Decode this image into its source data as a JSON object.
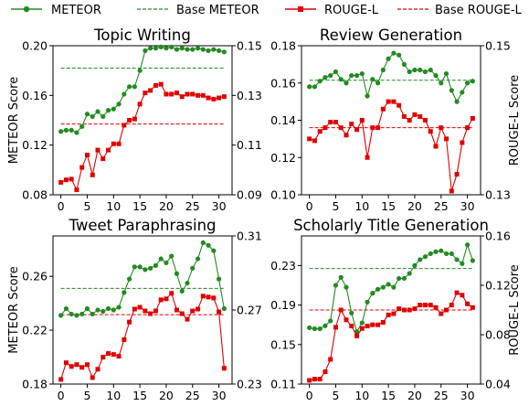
{
  "legend": {
    "meteor": "METEOR",
    "base_meteor": "Base METEOR",
    "rouge": "ROUGE-L",
    "base_rouge": "Base ROUGE-L"
  },
  "colors": {
    "meteor": "#228B22",
    "rouge": "#E00000"
  },
  "chart_data": [
    {
      "type": "line",
      "title": "Topic Writing",
      "ylabel": "METEOR Score",
      "y2label": "",
      "ylim": [
        0.08,
        0.2
      ],
      "yticks": [
        0.08,
        0.12,
        0.16,
        0.2
      ],
      "ytick_labels": [
        "0.08",
        "0.12",
        "0.16",
        "0.20"
      ],
      "y2lim": [
        0.09,
        0.15
      ],
      "y2ticks": [
        0.09,
        0.11,
        0.13,
        0.15
      ],
      "y2tick_labels": [
        "0.09",
        "0.11",
        "0.13",
        "0.15"
      ],
      "xlim": [
        -1.5,
        32.5
      ],
      "xticks": [
        0,
        5,
        10,
        15,
        20,
        25,
        30
      ],
      "xtick_labels": [
        "0",
        "5",
        "10",
        "15",
        "20",
        "25",
        "30"
      ],
      "x": [
        0,
        1,
        2,
        3,
        4,
        5,
        6,
        7,
        8,
        9,
        10,
        11,
        12,
        13,
        14,
        15,
        16,
        17,
        18,
        19,
        20,
        21,
        22,
        23,
        24,
        25,
        26,
        27,
        28,
        29,
        30,
        31
      ],
      "series": [
        {
          "name": "METEOR",
          "axis": "left",
          "values": [
            0.131,
            0.132,
            0.132,
            0.13,
            0.135,
            0.145,
            0.143,
            0.147,
            0.143,
            0.148,
            0.149,
            0.153,
            0.161,
            0.167,
            0.167,
            0.18,
            0.196,
            0.198,
            0.198,
            0.199,
            0.198,
            0.199,
            0.197,
            0.198,
            0.197,
            0.197,
            0.198,
            0.197,
            0.196,
            0.197,
            0.196,
            0.195
          ]
        },
        {
          "name": "ROUGE-L",
          "axis": "right",
          "values": [
            0.095,
            0.096,
            0.0963,
            0.092,
            0.101,
            0.106,
            0.098,
            0.108,
            0.1045,
            0.108,
            0.1105,
            0.1105,
            0.118,
            0.12,
            0.1205,
            0.1265,
            0.131,
            0.132,
            0.134,
            0.1345,
            0.1305,
            0.1305,
            0.131,
            0.1295,
            0.1305,
            0.1305,
            0.13,
            0.13,
            0.129,
            0.1285,
            0.129,
            0.1295
          ]
        }
      ],
      "base_meteor": 0.182,
      "base_rouge": 0.1185
    },
    {
      "type": "line",
      "title": "Review Generation",
      "ylabel": "",
      "y2label": "ROUGE-L Score",
      "ylim": [
        0.1,
        0.18
      ],
      "yticks": [
        0.1,
        0.12,
        0.14,
        0.16,
        0.18
      ],
      "ytick_labels": [
        "0.10",
        "0.12",
        "0.14",
        "0.16",
        "0.18"
      ],
      "y2lim": [
        0.13,
        0.15
      ],
      "y2ticks": [
        0.13,
        0.15
      ],
      "y2tick_labels": [
        "0.13",
        "0.15"
      ],
      "xlim": [
        -1.5,
        32.5
      ],
      "xticks": [
        0,
        5,
        10,
        15,
        20,
        25,
        30
      ],
      "xtick_labels": [
        "0",
        "5",
        "10",
        "15",
        "20",
        "25",
        "30"
      ],
      "x": [
        0,
        1,
        2,
        3,
        4,
        5,
        6,
        7,
        8,
        9,
        10,
        11,
        12,
        13,
        14,
        15,
        16,
        17,
        18,
        19,
        20,
        21,
        22,
        23,
        24,
        25,
        26,
        27,
        28,
        29,
        30,
        31
      ],
      "series": [
        {
          "name": "METEOR",
          "axis": "left",
          "values": [
            0.158,
            0.158,
            0.161,
            0.163,
            0.164,
            0.166,
            0.162,
            0.16,
            0.164,
            0.164,
            0.165,
            0.153,
            0.162,
            0.16,
            0.167,
            0.173,
            0.176,
            0.175,
            0.17,
            0.166,
            0.167,
            0.167,
            0.166,
            0.167,
            0.164,
            0.16,
            0.165,
            0.156,
            0.15,
            0.155,
            0.16,
            0.161
          ]
        },
        {
          "name": "ROUGE-L",
          "axis": "right",
          "values": [
            0.1375,
            0.13725,
            0.1385,
            0.139,
            0.13975,
            0.13975,
            0.139,
            0.138,
            0.1395,
            0.13875,
            0.14,
            0.135,
            0.139,
            0.139,
            0.1415,
            0.1425,
            0.1425,
            0.142,
            0.1405,
            0.14,
            0.14075,
            0.1405,
            0.14,
            0.1385,
            0.1365,
            0.139,
            0.1375,
            0.1305,
            0.13275,
            0.137,
            0.139,
            0.14025
          ]
        }
      ],
      "base_meteor": 0.1615,
      "base_rouge": 0.139
    },
    {
      "type": "line",
      "title": "Tweet Paraphrasing",
      "ylabel": "METEOR Score",
      "y2label": "",
      "ylim": [
        0.18,
        0.29
      ],
      "yticks": [
        0.18,
        0.22,
        0.26
      ],
      "ytick_labels": [
        "0.18",
        "0.22",
        "0.26"
      ],
      "y2lim": [
        0.23,
        0.31
      ],
      "y2ticks": [
        0.23,
        0.27,
        0.31
      ],
      "y2tick_labels": [
        "0.23",
        "0.27",
        "0.31"
      ],
      "xlim": [
        -1.5,
        32.5
      ],
      "xticks": [
        0,
        5,
        10,
        15,
        20,
        25,
        30
      ],
      "xtick_labels": [
        "0",
        "5",
        "10",
        "15",
        "20",
        "25",
        "30"
      ],
      "x": [
        0,
        1,
        2,
        3,
        4,
        5,
        6,
        7,
        8,
        9,
        10,
        11,
        12,
        13,
        14,
        15,
        16,
        17,
        18,
        19,
        20,
        21,
        22,
        23,
        24,
        25,
        26,
        27,
        28,
        29,
        30,
        31
      ],
      "series": [
        {
          "name": "METEOR",
          "axis": "left",
          "values": [
            0.231,
            0.236,
            0.232,
            0.231,
            0.232,
            0.236,
            0.232,
            0.235,
            0.234,
            0.236,
            0.235,
            0.237,
            0.248,
            0.258,
            0.267,
            0.267,
            0.265,
            0.266,
            0.268,
            0.273,
            0.27,
            0.275,
            0.262,
            0.249,
            0.255,
            0.266,
            0.273,
            0.285,
            0.283,
            0.279,
            0.258,
            0.236
          ]
        },
        {
          "name": "ROUGE-L",
          "axis": "right",
          "values": [
            0.2325,
            0.2415,
            0.2395,
            0.2405,
            0.239,
            0.2405,
            0.2335,
            0.238,
            0.2445,
            0.2465,
            0.246,
            0.245,
            0.254,
            0.2635,
            0.2705,
            0.2715,
            0.2695,
            0.268,
            0.2695,
            0.2755,
            0.276,
            0.279,
            0.27,
            0.268,
            0.265,
            0.2695,
            0.2705,
            0.2775,
            0.277,
            0.2765,
            0.269,
            0.2385
          ]
        }
      ],
      "base_meteor": 0.251,
      "base_rouge": 0.2675
    },
    {
      "type": "line",
      "title": "Scholarly Title Generation",
      "ylabel": "",
      "y2label": "ROUGE-L Score",
      "ylim": [
        0.11,
        0.26
      ],
      "yticks": [
        0.11,
        0.15,
        0.19,
        0.23
      ],
      "ytick_labels": [
        "0.11",
        "0.15",
        "0.19",
        "0.23"
      ],
      "y2lim": [
        0.04,
        0.16
      ],
      "y2ticks": [
        0.04,
        0.08,
        0.12,
        0.16
      ],
      "y2tick_labels": [
        "0.04",
        "0.08",
        "0.12",
        "0.16"
      ],
      "xlim": [
        -1.5,
        32.5
      ],
      "xticks": [
        0,
        5,
        10,
        15,
        20,
        25,
        30
      ],
      "xtick_labels": [
        "0",
        "5",
        "10",
        "15",
        "20",
        "25",
        "30"
      ],
      "x": [
        0,
        1,
        2,
        3,
        4,
        5,
        6,
        7,
        8,
        9,
        10,
        11,
        12,
        13,
        14,
        15,
        16,
        17,
        18,
        19,
        20,
        21,
        22,
        23,
        24,
        25,
        26,
        27,
        28,
        29,
        30,
        31
      ],
      "series": [
        {
          "name": "METEOR",
          "axis": "left",
          "values": [
            0.167,
            0.166,
            0.166,
            0.169,
            0.174,
            0.21,
            0.218,
            0.208,
            0.182,
            0.163,
            0.172,
            0.193,
            0.202,
            0.206,
            0.208,
            0.211,
            0.208,
            0.217,
            0.217,
            0.222,
            0.23,
            0.236,
            0.239,
            0.242,
            0.244,
            0.245,
            0.242,
            0.242,
            0.236,
            0.232,
            0.251,
            0.235
          ]
        },
        {
          "name": "ROUGE-L",
          "axis": "right",
          "values": [
            0.043,
            0.044,
            0.044,
            0.05,
            0.06,
            0.086,
            0.1,
            0.092,
            0.087,
            0.079,
            0.085,
            0.087,
            0.088,
            0.088,
            0.09,
            0.096,
            0.097,
            0.101,
            0.1,
            0.1,
            0.101,
            0.104,
            0.104,
            0.104,
            0.102,
            0.097,
            0.1,
            0.104,
            0.114,
            0.112,
            0.105,
            0.102
          ]
        }
      ],
      "base_meteor": 0.227,
      "base_rouge": 0.1
    }
  ]
}
